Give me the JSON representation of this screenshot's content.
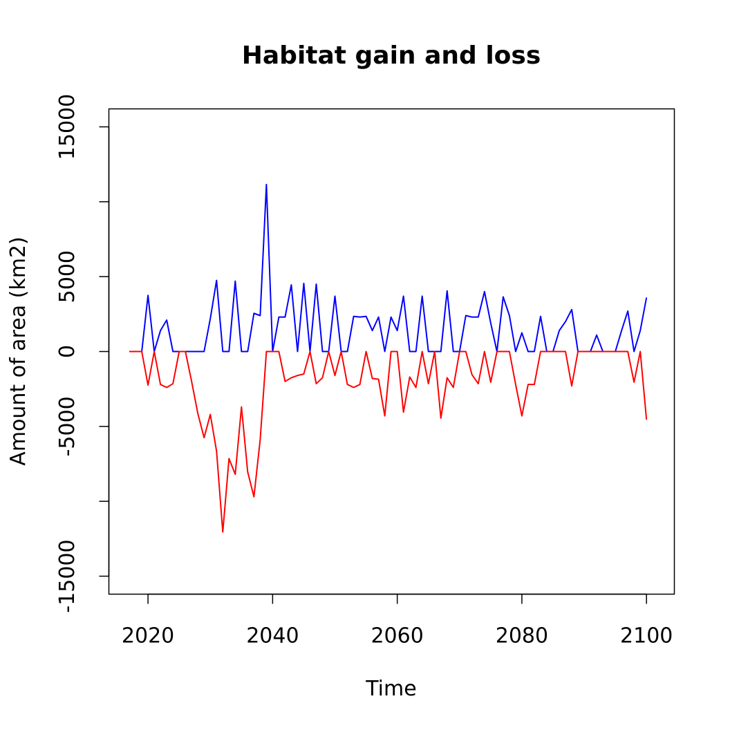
{
  "chart_data": {
    "type": "line",
    "title": "Habitat gain and loss",
    "xlabel": "Time",
    "ylabel": "Amount of area (km2)",
    "xlim": [
      2013.72,
      2104.47
    ],
    "ylim": [
      -16200,
      16200
    ],
    "xticks": [
      2020,
      2040,
      2060,
      2080,
      2100
    ],
    "yticks": [
      -15000,
      -10000,
      -5000,
      0,
      5000,
      10000,
      15000
    ],
    "ytick_labels": [
      "-15000",
      "",
      "-5000",
      "0",
      "5000",
      "",
      "15000"
    ],
    "series": [
      {
        "color": "#0000ff",
        "x": [
          2017,
          2018,
          2019,
          2020,
          2021,
          2022,
          2023,
          2024,
          2025,
          2026,
          2027,
          2028,
          2029,
          2030,
          2031,
          2032,
          2033,
          2034,
          2035,
          2036,
          2037,
          2038,
          2039,
          2040,
          2041,
          2042,
          2043,
          2044,
          2045,
          2046,
          2047,
          2048,
          2049,
          2050,
          2051,
          2052,
          2053,
          2054,
          2055,
          2056,
          2057,
          2058,
          2059,
          2060,
          2061,
          2062,
          2063,
          2064,
          2065,
          2066,
          2067,
          2068,
          2069,
          2070,
          2071,
          2072,
          2073,
          2074,
          2075,
          2076,
          2077,
          2078,
          2079,
          2080,
          2081,
          2082,
          2083,
          2084,
          2085,
          2086,
          2087,
          2088,
          2089,
          2090,
          2091,
          2092,
          2093,
          2094,
          2095,
          2096,
          2097,
          2098,
          2099,
          2100
        ],
        "y": [
          0,
          0,
          0,
          3750,
          0,
          1400,
          2100,
          0,
          0,
          0,
          0,
          0,
          0,
          2200,
          4750,
          0,
          0,
          4700,
          0,
          0,
          2550,
          2400,
          11150,
          0,
          2300,
          2300,
          4450,
          0,
          4550,
          0,
          4500,
          0,
          0,
          3700,
          0,
          0,
          2350,
          2300,
          2350,
          1400,
          2300,
          0,
          2300,
          1400,
          3700,
          0,
          0,
          3700,
          0,
          0,
          0,
          4050,
          0,
          0,
          2400,
          2300,
          2300,
          4000,
          1900,
          0,
          3650,
          2400,
          0,
          1250,
          0,
          0,
          2350,
          0,
          0,
          1400,
          2000,
          2800,
          0,
          0,
          0,
          1100,
          0,
          0,
          0,
          1400,
          2700,
          0,
          1400,
          3600
        ]
      },
      {
        "color": "#ff0000",
        "x": [
          2017,
          2018,
          2019,
          2020,
          2021,
          2022,
          2023,
          2024,
          2025,
          2026,
          2027,
          2028,
          2029,
          2030,
          2031,
          2032,
          2033,
          2034,
          2035,
          2036,
          2037,
          2038,
          2039,
          2040,
          2041,
          2042,
          2043,
          2044,
          2045,
          2046,
          2047,
          2048,
          2049,
          2050,
          2051,
          2052,
          2053,
          2054,
          2055,
          2056,
          2057,
          2058,
          2059,
          2060,
          2061,
          2062,
          2063,
          2064,
          2065,
          2066,
          2067,
          2068,
          2069,
          2070,
          2071,
          2072,
          2073,
          2074,
          2075,
          2076,
          2077,
          2078,
          2079,
          2080,
          2081,
          2082,
          2083,
          2084,
          2085,
          2086,
          2087,
          2088,
          2089,
          2090,
          2091,
          2092,
          2093,
          2094,
          2095,
          2096,
          2097,
          2098,
          2099,
          2100
        ],
        "y": [
          0,
          0,
          0,
          -2250,
          0,
          -2200,
          -2400,
          -2150,
          0,
          0,
          -2000,
          -4150,
          -5750,
          -4200,
          -6650,
          -12050,
          -7150,
          -8200,
          -3700,
          -8050,
          -9700,
          -5900,
          0,
          0,
          0,
          -2000,
          -1750,
          -1600,
          -1500,
          0,
          -2150,
          -1750,
          0,
          -1600,
          0,
          -2200,
          -2400,
          -2200,
          0,
          -1800,
          -1850,
          -4300,
          0,
          0,
          -4050,
          -1700,
          -2400,
          0,
          -2150,
          0,
          -4450,
          -1750,
          -2400,
          0,
          0,
          -1550,
          -2150,
          0,
          -2050,
          0,
          0,
          0,
          -2200,
          -4300,
          -2200,
          -2200,
          0,
          0,
          0,
          0,
          0,
          -2300,
          0,
          0,
          0,
          0,
          0,
          0,
          0,
          0,
          0,
          -2050,
          0,
          -4550
        ]
      }
    ]
  }
}
